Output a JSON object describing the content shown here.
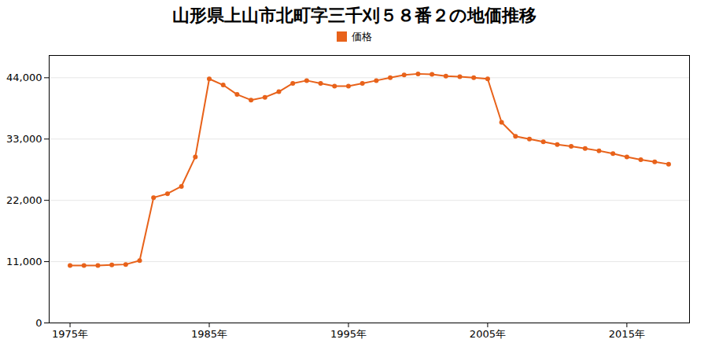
{
  "chart_data": {
    "type": "line",
    "title": "山形県上山市北町字三千刈５８番２の地価推移",
    "x": [
      1975,
      1976,
      1977,
      1978,
      1979,
      1980,
      1981,
      1982,
      1983,
      1984,
      1985,
      1986,
      1987,
      1988,
      1989,
      1990,
      1991,
      1992,
      1993,
      1994,
      1995,
      1996,
      1997,
      1998,
      1999,
      2000,
      2001,
      2002,
      2003,
      2004,
      2005,
      2006,
      2007,
      2008,
      2009,
      2010,
      2011,
      2012,
      2013,
      2014,
      2015,
      2016,
      2017,
      2018
    ],
    "series": [
      {
        "name": "価格",
        "color": "#E8621A",
        "marker": "circle",
        "values": [
          10300,
          10300,
          10300,
          10400,
          10500,
          11200,
          22500,
          23200,
          24500,
          29800,
          43800,
          42700,
          41000,
          40000,
          40500,
          41500,
          43000,
          43500,
          43000,
          42500,
          42500,
          43000,
          43500,
          44000,
          44500,
          44700,
          44600,
          44300,
          44200,
          44000,
          43800,
          36000,
          33500,
          33000,
          32500,
          32000,
          31700,
          31300,
          30900,
          30400,
          29800,
          29300,
          28900,
          28500
        ]
      }
    ],
    "xlim": [
      1973.5,
      2019.5
    ],
    "xticks": [
      {
        "value": 1975,
        "label": "1975年"
      },
      {
        "value": 1985,
        "label": "1985年"
      },
      {
        "value": 1995,
        "label": "1995年"
      },
      {
        "value": 2005,
        "label": "2005年"
      },
      {
        "value": 2015,
        "label": "2015年"
      }
    ],
    "ylim": [
      0,
      48000
    ],
    "yticks": [
      0,
      {
        "value": 11000,
        "label": "11,000"
      },
      {
        "value": 22000,
        "label": "22,000"
      },
      {
        "value": 33000,
        "label": "33,000"
      },
      {
        "value": 44000,
        "label": "44,000"
      }
    ],
    "grid": true,
    "legend": "top"
  }
}
